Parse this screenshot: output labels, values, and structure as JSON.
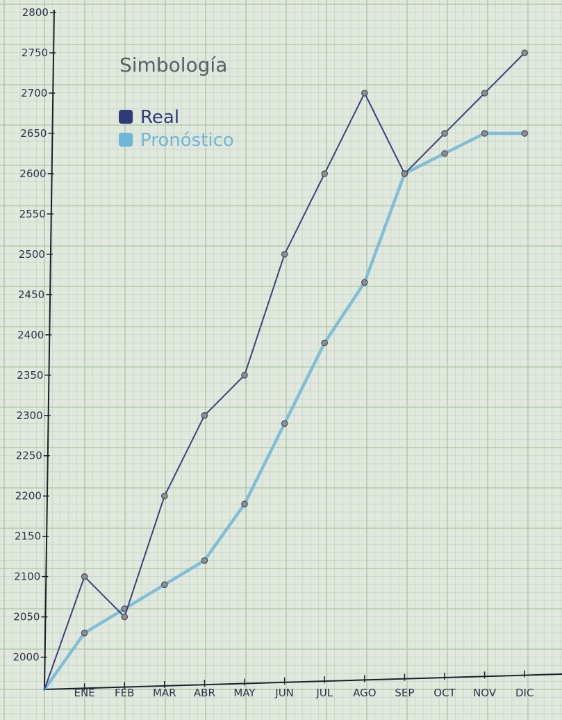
{
  "chart_data": {
    "type": "line",
    "categories": [
      "ENE",
      "FEB",
      "MAR",
      "ABR",
      "MAY",
      "JUN",
      "JUL",
      "AGO",
      "SEP",
      "OCT",
      "NOV",
      "DIC"
    ],
    "series": [
      {
        "name": "Real",
        "color": "#2f3a78",
        "values": [
          2100,
          2050,
          2200,
          2300,
          2350,
          2500,
          2600,
          2700,
          2600,
          2650,
          2700,
          2750
        ]
      },
      {
        "name": "Pronóstico",
        "color": "#6fb7d8",
        "values": [
          2030,
          2060,
          2090,
          2120,
          2190,
          2290,
          2390,
          2465,
          2600,
          2625,
          2650,
          2650
        ]
      }
    ],
    "origin_value": 1960,
    "ylim": [
      1960,
      2800
    ],
    "yticks": [
      2000,
      2050,
      2100,
      2150,
      2200,
      2250,
      2300,
      2350,
      2400,
      2450,
      2500,
      2550,
      2600,
      2650,
      2700,
      2750,
      2800
    ],
    "ytick_labels": [
      "2000",
      "2050",
      "2100",
      "2150",
      "2200",
      "2250",
      "2300",
      "2350",
      "2400",
      "2450",
      "2500",
      "2550",
      "2600",
      "2650",
      "2700",
      "2750",
      "2800"
    ],
    "grid": true,
    "legend": {
      "title": "Simbología",
      "placement": "top-left"
    }
  }
}
